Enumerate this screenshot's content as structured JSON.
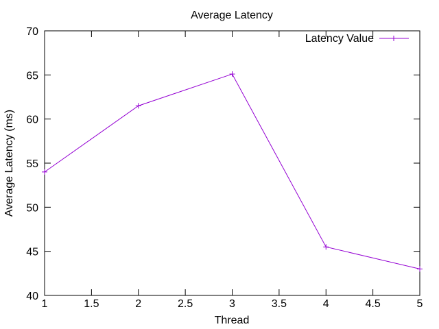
{
  "chart_data": {
    "type": "line",
    "title": "Average Latency",
    "xlabel": "Thread",
    "ylabel": "Average Latency (ms)",
    "xlim": [
      1,
      5
    ],
    "ylim": [
      40,
      70
    ],
    "xticks": [
      "1",
      "1.5",
      "2",
      "2.5",
      "3",
      "3.5",
      "4",
      "4.5",
      "5"
    ],
    "yticks": [
      "40",
      "45",
      "50",
      "55",
      "60",
      "65",
      "70"
    ],
    "grid": false,
    "legend_position": "top-right",
    "series": [
      {
        "name": "Latency Value",
        "color": "#9400d3",
        "marker": "plus",
        "x": [
          1,
          2,
          3,
          4,
          5
        ],
        "y": [
          54.0,
          61.5,
          65.1,
          45.5,
          43.0
        ]
      }
    ]
  }
}
